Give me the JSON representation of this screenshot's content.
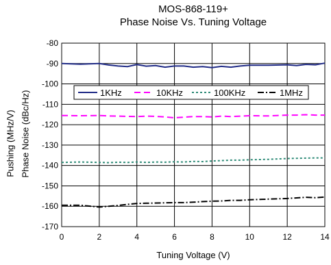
{
  "chart_data": {
    "type": "line",
    "title": "MOS-868-119+",
    "subtitle": "Phase Noise Vs. Tuning Voltage",
    "xlabel": "Tuning Voltage (V)",
    "ylabel_outer": "Pushing (MHz/V)",
    "ylabel_inner": "Phase Noise (dBc/Hz)",
    "xlim": [
      0,
      14
    ],
    "ylim": [
      -170,
      -80
    ],
    "x_ticks": [
      0,
      2,
      4,
      6,
      8,
      10,
      12,
      14
    ],
    "y_ticks": [
      -80,
      -90,
      -100,
      -110,
      -120,
      -130,
      -140,
      -150,
      -160,
      -170
    ],
    "grid": true,
    "legend_position": "upper-center",
    "x": [
      0,
      1,
      2,
      2.5,
      3,
      3.5,
      4,
      4.5,
      5,
      5.5,
      6,
      6.5,
      7,
      7.5,
      8,
      8.5,
      9,
      9.5,
      10,
      11,
      12,
      12.5,
      13,
      13.5,
      14
    ],
    "series": [
      {
        "name": "1KHz",
        "color": "#1f2a86",
        "dash": "solid",
        "values": [
          -90,
          -90.3,
          -90,
          -90.7,
          -91.2,
          -91.5,
          -90.5,
          -91.3,
          -91,
          -91.8,
          -91.2,
          -91.2,
          -91.8,
          -91.5,
          -92,
          -91.4,
          -91.8,
          -91.2,
          -90.8,
          -90.8,
          -90.6,
          -91,
          -90.4,
          -90.6,
          -89.8
        ]
      },
      {
        "name": "10KHz",
        "color": "#ff00ff",
        "dash": "dash",
        "values": [
          -115.5,
          -115.6,
          -115.5,
          -115.7,
          -115.8,
          -115.9,
          -116,
          -115.8,
          -115.9,
          -116.2,
          -116.6,
          -116.3,
          -116,
          -116,
          -116.2,
          -115.8,
          -116,
          -115.8,
          -115.6,
          -115.7,
          -115.3,
          -115.3,
          -115.1,
          -115.3,
          -115.3
        ]
      },
      {
        "name": "100KHz",
        "color": "#2e8b77",
        "dash": "dot",
        "values": [
          -138.5,
          -138.3,
          -138.5,
          -138.6,
          -138.4,
          -138.5,
          -138.3,
          -138.5,
          -138.3,
          -138.4,
          -138.2,
          -138.3,
          -138,
          -138.1,
          -137.8,
          -137.6,
          -137.4,
          -137.4,
          -137.2,
          -137,
          -136.6,
          -136.5,
          -136.4,
          -136.3,
          -136.3
        ]
      },
      {
        "name": "1MHz",
        "color": "#000000",
        "dash": "dashdot",
        "values": [
          -159.5,
          -159.5,
          -160.4,
          -160,
          -159.6,
          -159.1,
          -158.6,
          -158.5,
          -158.4,
          -158.3,
          -158.2,
          -158.2,
          -158,
          -157.7,
          -157.5,
          -157.4,
          -157.1,
          -157.1,
          -156.8,
          -156.5,
          -156.2,
          -155.9,
          -155.6,
          -155.8,
          -155.5
        ]
      }
    ]
  }
}
